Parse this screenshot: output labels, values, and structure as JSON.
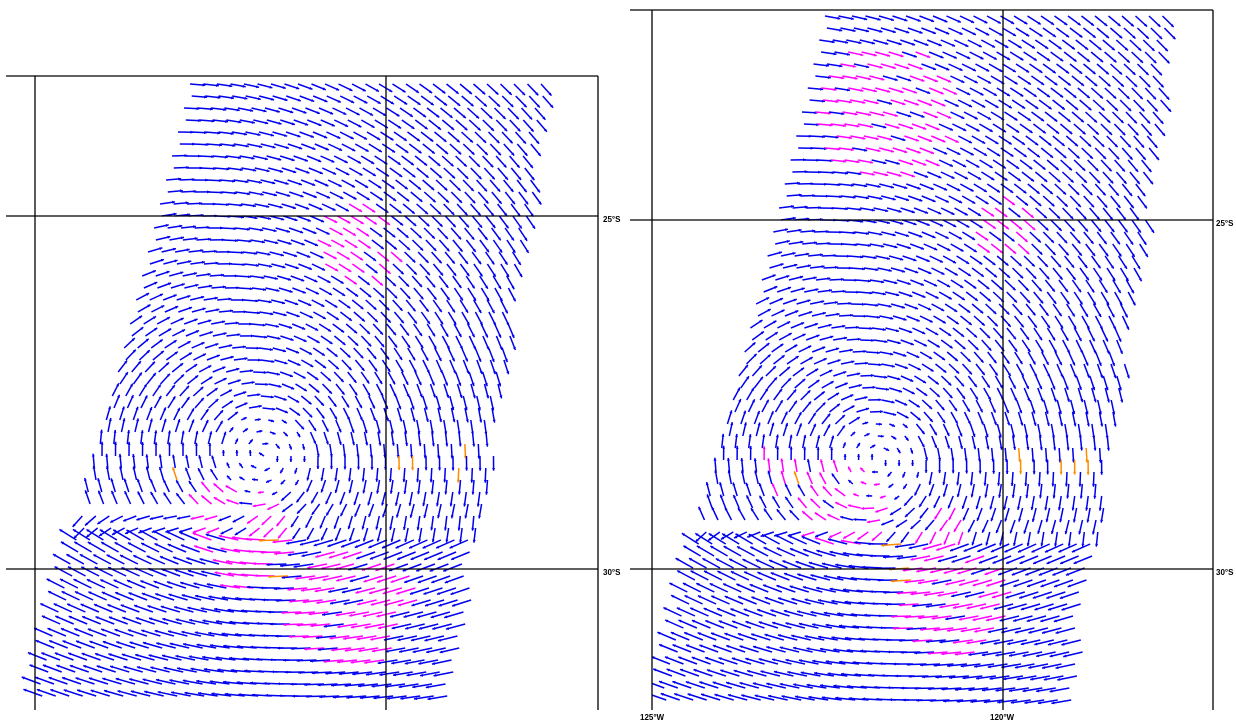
{
  "panels": [
    {
      "name": "left-panel",
      "lat_labels": [
        "25°S",
        "30°S"
      ],
      "lon_labels": []
    },
    {
      "name": "right-panel",
      "lat_labels": [
        "25°S",
        "30°S"
      ],
      "lon_labels": [
        "125°W",
        "120°W"
      ]
    }
  ],
  "colors": {
    "frame": "#000000",
    "vector_primary": "#0000ee",
    "vector_flagged": "#ff00ff",
    "vector_rain": "#ff8c00",
    "background": "#ffffff"
  },
  "map": {
    "projection": "lat-lon",
    "lon_range": [
      "125°W",
      "118°W"
    ],
    "lat_range": [
      "23°S",
      "32°S"
    ],
    "feature": "cyclonic wind circulation (scatterometer wind vectors)"
  }
}
